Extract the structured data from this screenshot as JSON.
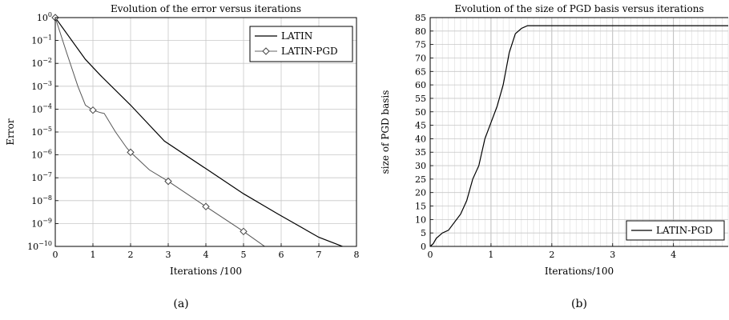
{
  "figures": [
    {
      "caption": "(a)"
    },
    {
      "caption": "(b)"
    }
  ],
  "chart_data": [
    {
      "type": "line",
      "title": "Evolution of the error versus iterations",
      "xlabel": "Iterations /100",
      "ylabel": "Error",
      "xlim": [
        0,
        8
      ],
      "ylim": [
        1e-10,
        1
      ],
      "yscale": "log",
      "grid": true,
      "legend_position": "top-right",
      "x_ticks": [
        "0",
        "1",
        "2",
        "3",
        "4",
        "5",
        "6",
        "7",
        "8"
      ],
      "y_ticks": [
        {
          "base": "10",
          "exp": "0"
        },
        {
          "base": "10",
          "exp": "−1"
        },
        {
          "base": "10",
          "exp": "−2"
        },
        {
          "base": "10",
          "exp": "−3"
        },
        {
          "base": "10",
          "exp": "−4"
        },
        {
          "base": "10",
          "exp": "−5"
        },
        {
          "base": "10",
          "exp": "−6"
        },
        {
          "base": "10",
          "exp": "−7"
        },
        {
          "base": "10",
          "exp": "−8"
        },
        {
          "base": "10",
          "exp": "−9"
        },
        {
          "base": "10",
          "exp": "−10"
        }
      ],
      "series": [
        {
          "name": "LATIN",
          "marker": "none",
          "x": [
            0,
            0.8,
            1.2,
            2.0,
            2.9,
            4.0,
            5.0,
            5.9,
            7.0,
            7.7
          ],
          "y": [
            1,
            0.015,
            0.003,
            0.00015,
            4e-06,
            2.5e-07,
            2e-08,
            2.7e-09,
            2.5e-10,
            9e-11
          ]
        },
        {
          "name": "LATIN-PGD",
          "marker": "diamond",
          "x": [
            0,
            0.3,
            0.6,
            0.8,
            1.0,
            1.2,
            1.3,
            1.6,
            1.9,
            2.0,
            2.5,
            3.0,
            4.0,
            5.0,
            5.6
          ],
          "y": [
            1,
            0.03,
            0.001,
            0.00015,
            9e-05,
            7e-05,
            6.5e-05,
            1e-05,
            2e-06,
            1.3e-06,
            2.2e-07,
            7e-08,
            5.5e-09,
            4.5e-10,
            9e-11
          ],
          "marker_x": [
            0,
            1,
            2,
            3,
            4,
            5
          ]
        }
      ]
    },
    {
      "type": "line",
      "title": "Evolution of the size of PGD basis versus iterations",
      "xlabel": "Iterations/100",
      "ylabel": "size of PGD basis",
      "xlim": [
        0,
        4.9
      ],
      "ylim": [
        0,
        85
      ],
      "grid": true,
      "legend_position": "bottom-right",
      "x_ticks": [
        "0",
        "1",
        "2",
        "3",
        "4"
      ],
      "y_ticks": [
        "0",
        "5",
        "10",
        "15",
        "20",
        "25",
        "30",
        "35",
        "40",
        "45",
        "50",
        "55",
        "60",
        "65",
        "70",
        "75",
        "80",
        "85"
      ],
      "series": [
        {
          "name": "LATIN-PGD",
          "marker": "none",
          "x": [
            0,
            0.05,
            0.1,
            0.2,
            0.3,
            0.4,
            0.5,
            0.6,
            0.7,
            0.8,
            0.9,
            1.0,
            1.1,
            1.2,
            1.3,
            1.4,
            1.5,
            1.6,
            1.7,
            2.0,
            3.0,
            4.0,
            4.9
          ],
          "y": [
            0,
            1,
            3,
            5,
            6,
            9,
            12,
            17,
            25,
            30,
            40,
            46,
            52,
            60,
            72,
            79,
            81,
            82,
            82,
            82,
            82,
            82,
            82
          ]
        }
      ]
    }
  ]
}
